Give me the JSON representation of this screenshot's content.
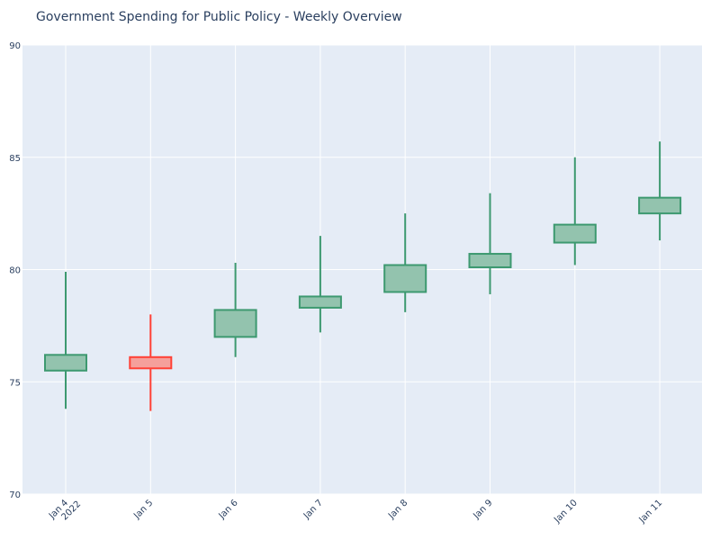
{
  "chart_data": {
    "type": "candlestick",
    "title": "Government Spending for Public Policy - Weekly Overview",
    "xlabel": "",
    "ylabel": "",
    "ylim": [
      70,
      90
    ],
    "y_ticks": [
      70,
      75,
      80,
      85,
      90
    ],
    "grid": true,
    "x_tick_labels": [
      "Jan 4\n2022",
      "Jan 5",
      "Jan 6",
      "Jan 7",
      "Jan 8",
      "Jan 9",
      "Jan 10",
      "Jan 11"
    ],
    "dates": [
      "2022-01-04",
      "2022-01-05",
      "2022-01-06",
      "2022-01-07",
      "2022-01-08",
      "2022-01-09",
      "2022-01-10",
      "2022-01-11"
    ],
    "open": [
      75.5,
      76.1,
      77.0,
      78.3,
      79.0,
      80.1,
      81.2,
      82.5
    ],
    "high": [
      79.9,
      78.0,
      80.3,
      81.5,
      82.5,
      83.4,
      85.0,
      85.7
    ],
    "low": [
      73.8,
      73.7,
      76.1,
      77.2,
      78.1,
      78.9,
      80.2,
      81.3
    ],
    "close": [
      76.2,
      75.6,
      78.2,
      78.8,
      80.2,
      80.7,
      82.0,
      83.2
    ],
    "colors": {
      "increasing": "#3d9970",
      "increasing_fill": "#93c3ae",
      "decreasing": "#ff4136",
      "decreasing_fill": "#f5a09b",
      "plot_bg": "#e5ecf6",
      "grid": "#ffffff",
      "text": "#2a3f5f"
    }
  }
}
